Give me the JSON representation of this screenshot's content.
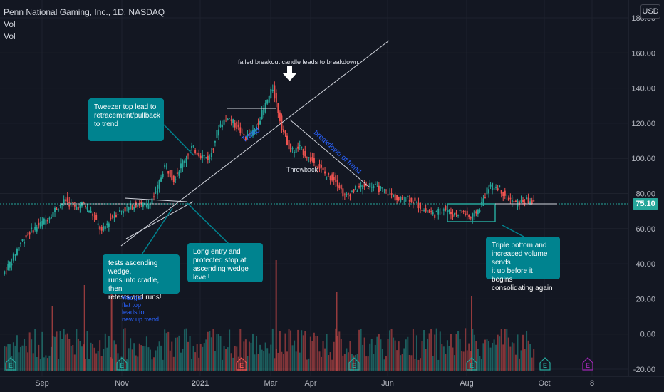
{
  "header": {
    "symbol_line": "Penn National Gaming, Inc., 1D, NASDAQ",
    "vol1": "Vol",
    "vol2": "Vol",
    "currency": "USD"
  },
  "price_tag": "75.10",
  "chart_data": {
    "type": "candlestick",
    "symbol": "Penn National Gaming, Inc.",
    "interval": "1D",
    "exchange": "NASDAQ",
    "y_axis_ticks": [
      "180.00",
      "160.00",
      "140.00",
      "120.00",
      "100.00",
      "80.00",
      "60.00",
      "40.00",
      "20.00",
      "0.00",
      "-20.00"
    ],
    "x_axis_ticks": [
      "Sep",
      "Nov",
      "2021",
      "Mar",
      "Apr",
      "Jun",
      "Aug",
      "Oct",
      "8"
    ],
    "last_price": 75.1,
    "price_path": [
      {
        "date": "2020-08-18",
        "close": 34
      },
      {
        "date": "2020-08-25",
        "close": 42
      },
      {
        "date": "2020-09-01",
        "close": 52
      },
      {
        "date": "2020-09-08",
        "close": 58
      },
      {
        "date": "2020-09-15",
        "close": 62
      },
      {
        "date": "2020-09-22",
        "close": 66
      },
      {
        "date": "2020-09-29",
        "close": 72
      },
      {
        "date": "2020-10-06",
        "close": 76
      },
      {
        "date": "2020-10-13",
        "close": 72
      },
      {
        "date": "2020-10-20",
        "close": 74
      },
      {
        "date": "2020-10-27",
        "close": 68
      },
      {
        "date": "2020-11-03",
        "close": 58
      },
      {
        "date": "2020-11-10",
        "close": 66
      },
      {
        "date": "2020-11-17",
        "close": 70
      },
      {
        "date": "2020-11-24",
        "close": 72
      },
      {
        "date": "2020-12-01",
        "close": 74
      },
      {
        "date": "2020-12-08",
        "close": 73
      },
      {
        "date": "2020-12-15",
        "close": 80
      },
      {
        "date": "2020-12-22",
        "close": 96
      },
      {
        "date": "2020-12-29",
        "close": 88
      },
      {
        "date": "2021-01-05",
        "close": 98
      },
      {
        "date": "2021-01-12",
        "close": 106
      },
      {
        "date": "2021-01-19",
        "close": 102
      },
      {
        "date": "2021-01-26",
        "close": 100
      },
      {
        "date": "2021-02-02",
        "close": 118
      },
      {
        "date": "2021-02-09",
        "close": 124
      },
      {
        "date": "2021-02-16",
        "close": 118
      },
      {
        "date": "2021-02-23",
        "close": 112
      },
      {
        "date": "2021-03-02",
        "close": 116
      },
      {
        "date": "2021-03-09",
        "close": 128
      },
      {
        "date": "2021-03-16",
        "close": 140
      },
      {
        "date": "2021-03-23",
        "close": 118
      },
      {
        "date": "2021-03-30",
        "close": 104
      },
      {
        "date": "2021-04-06",
        "close": 106
      },
      {
        "date": "2021-04-13",
        "close": 100
      },
      {
        "date": "2021-04-20",
        "close": 96
      },
      {
        "date": "2021-04-27",
        "close": 90
      },
      {
        "date": "2021-05-04",
        "close": 88
      },
      {
        "date": "2021-05-11",
        "close": 78
      },
      {
        "date": "2021-05-18",
        "close": 82
      },
      {
        "date": "2021-05-25",
        "close": 84
      },
      {
        "date": "2021-06-01",
        "close": 85
      },
      {
        "date": "2021-06-08",
        "close": 82
      },
      {
        "date": "2021-06-15",
        "close": 80
      },
      {
        "date": "2021-06-22",
        "close": 76
      },
      {
        "date": "2021-06-29",
        "close": 78
      },
      {
        "date": "2021-07-06",
        "close": 74
      },
      {
        "date": "2021-07-13",
        "close": 70
      },
      {
        "date": "2021-07-20",
        "close": 68
      },
      {
        "date": "2021-07-27",
        "close": 72
      },
      {
        "date": "2021-08-03",
        "close": 68
      },
      {
        "date": "2021-08-10",
        "close": 70
      },
      {
        "date": "2021-08-17",
        "close": 66
      },
      {
        "date": "2021-08-24",
        "close": 72
      },
      {
        "date": "2021-08-31",
        "close": 84
      },
      {
        "date": "2021-09-07",
        "close": 84
      },
      {
        "date": "2021-09-14",
        "close": 78
      },
      {
        "date": "2021-09-21",
        "close": 74
      },
      {
        "date": "2021-09-28",
        "close": 76
      },
      {
        "date": "2021-10-05",
        "close": 75
      }
    ],
    "annotations": {
      "tweezer": "Tweezer top lead to\nretracement/pullback\nto trend",
      "failed": "failed breakout candle leads to breakdown",
      "trend_label": "Trend",
      "breakdown_label": "breakdown of trend",
      "throwback": "Throwback",
      "wedge_note": "tests ascending wedge,\nruns into cradle, then\nretests and runs!",
      "long_entry": "Long entry and\nprotected stop at\nascending wedge level!",
      "triple": "Triple bottom and\nincreased volume sends\nit up before it begins\nconsolidating again",
      "wedge_flat": "wedge/\nflat top\nleads to\nnew up trend"
    }
  }
}
